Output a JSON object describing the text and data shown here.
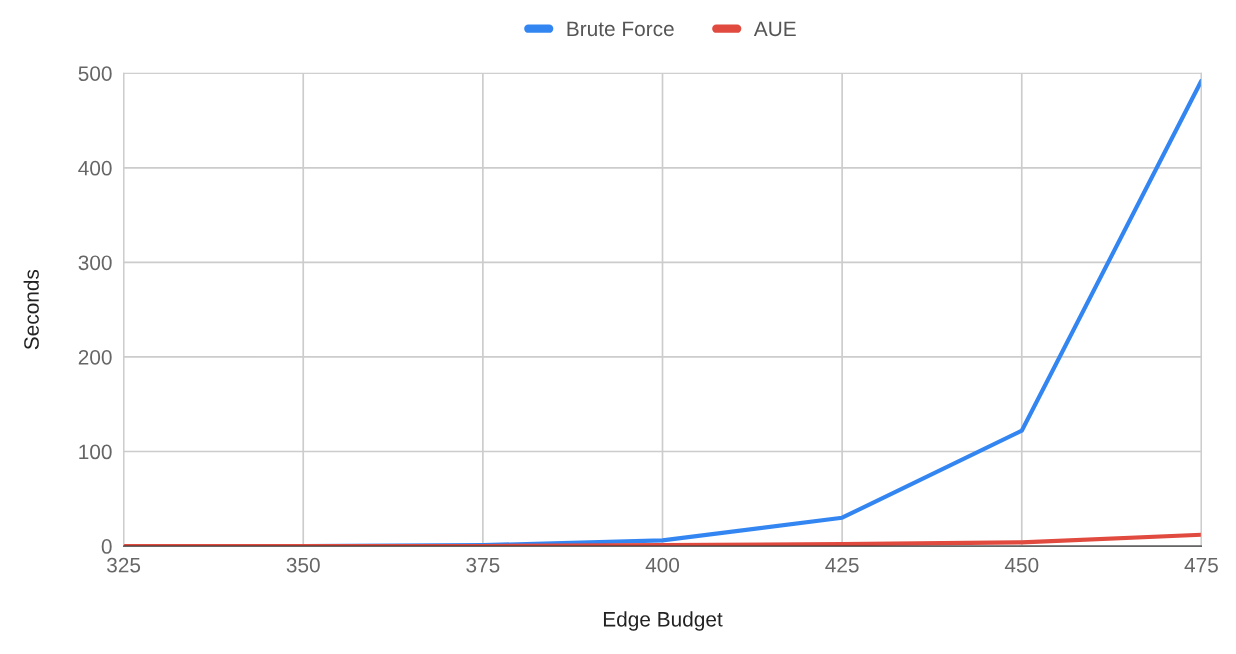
{
  "chart_data": {
    "type": "line",
    "xlabel": "Edge Budget",
    "ylabel": "Seconds",
    "x": [
      325,
      350,
      375,
      400,
      425,
      450,
      475
    ],
    "series": [
      {
        "name": "Brute Force",
        "color": "#3386f2",
        "values": [
          0,
          0,
          1,
          6,
          30,
          122,
          492
        ]
      },
      {
        "name": "AUE",
        "color": "#e04a3f",
        "values": [
          0,
          0,
          0,
          1,
          2,
          4,
          12
        ]
      }
    ],
    "xlim": [
      325,
      475
    ],
    "xticks": [
      325,
      350,
      375,
      400,
      425,
      450,
      475
    ],
    "ylim": [
      0,
      500
    ],
    "yticks": [
      0,
      100,
      200,
      300,
      400,
      500
    ],
    "grid": true,
    "legend": "top",
    "marker": "none",
    "line_style": "solid"
  }
}
